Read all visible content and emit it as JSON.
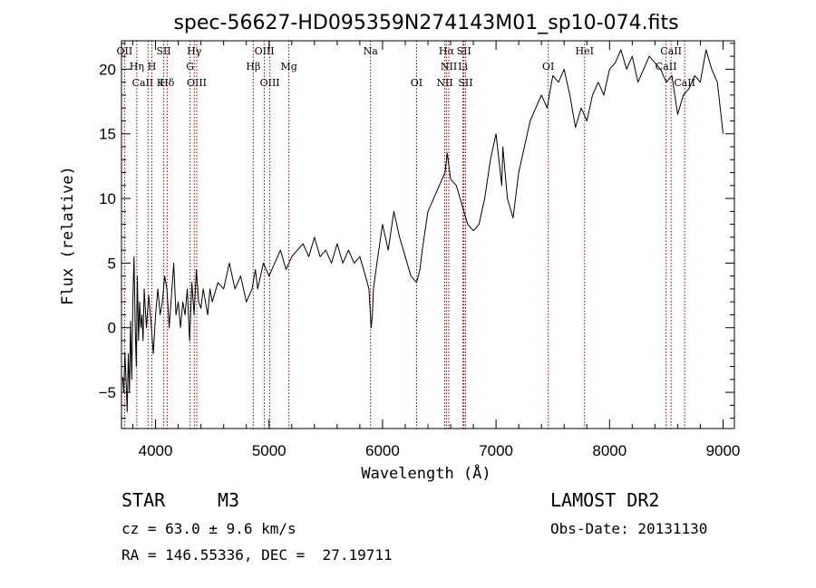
{
  "chart_data": {
    "type": "line",
    "title": "spec-56627-HD095359N274143M01_sp10-074.fits",
    "xlabel": "Wavelength (Å)",
    "ylabel": "Flux (relative)",
    "xlim": [
      3700,
      9100
    ],
    "ylim": [
      -7.8,
      22.2
    ],
    "grid": false,
    "xticks": [
      4000,
      5000,
      6000,
      7000,
      8000,
      9000
    ],
    "yticks": [
      -5,
      0,
      5,
      10,
      15,
      20
    ],
    "series": [
      {
        "x": [
          3710,
          3720,
          3730,
          3740,
          3750,
          3760,
          3770,
          3780,
          3790,
          3800,
          3810,
          3820,
          3830,
          3840,
          3850,
          3860,
          3870,
          3880,
          3890,
          3900,
          3920,
          3940,
          3960,
          3980,
          4000,
          4020,
          4040,
          4060,
          4080,
          4100,
          4120,
          4140,
          4160,
          4180,
          4200,
          4220,
          4240,
          4260,
          4280,
          4300,
          4320,
          4340,
          4360,
          4380,
          4400,
          4420,
          4440,
          4460,
          4480,
          4500,
          4550,
          4600,
          4650,
          4700,
          4750,
          4800,
          4850,
          4880,
          4900,
          4950,
          5000,
          5050,
          5100,
          5150,
          5200,
          5250,
          5300,
          5350,
          5400,
          5450,
          5500,
          5550,
          5600,
          5650,
          5700,
          5750,
          5800,
          5850,
          5880,
          5900,
          5910,
          5920,
          5950,
          6000,
          6050,
          6100,
          6150,
          6200,
          6250,
          6300,
          6330,
          6350,
          6400,
          6450,
          6500,
          6550,
          6570,
          6600,
          6650,
          6700,
          6750,
          6800,
          6850,
          6900,
          6950,
          7000,
          7050,
          7060,
          7100,
          7150,
          7200,
          7250,
          7300,
          7350,
          7400,
          7450,
          7500,
          7550,
          7600,
          7650,
          7700,
          7750,
          7800,
          7850,
          7900,
          7950,
          8000,
          8050,
          8100,
          8150,
          8200,
          8250,
          8300,
          8350,
          8400,
          8450,
          8500,
          8550,
          8600,
          8650,
          8700,
          8750,
          8800,
          8850,
          8900,
          8950,
          9000
        ],
        "values": [
          -3.8,
          -5,
          -2,
          -4,
          -6.5,
          -2,
          -5,
          0.5,
          -4,
          2,
          5.5,
          0.5,
          -3,
          4,
          -1,
          2,
          0,
          1,
          -1,
          3,
          0,
          2.5,
          0.5,
          -2,
          1,
          3,
          1,
          2,
          4,
          3,
          0,
          2.5,
          5,
          1,
          2,
          0,
          2,
          1,
          3,
          -1,
          3.5,
          1,
          4.5,
          2,
          1.5,
          3,
          2,
          1,
          3,
          2,
          3.5,
          3,
          5,
          3,
          4,
          2,
          3,
          4.5,
          3,
          5,
          4,
          5,
          6,
          4.5,
          5.5,
          6,
          6.5,
          5.5,
          7,
          5.5,
          6,
          5,
          6.5,
          5,
          6,
          5,
          5.5,
          4,
          3,
          0,
          1,
          3,
          5,
          8,
          6,
          9,
          7,
          5.5,
          4,
          3.5,
          4.5,
          6,
          9,
          10,
          11,
          12,
          13.5,
          11.5,
          11,
          9.5,
          8,
          7.5,
          8,
          10,
          13,
          15,
          11,
          14,
          10,
          8.5,
          12,
          14,
          16,
          17,
          18,
          17,
          19.5,
          19,
          20,
          18,
          15.5,
          17,
          16,
          18,
          19,
          18,
          20,
          20.5,
          21.5,
          20,
          21,
          19,
          20,
          21,
          20.5,
          20,
          19,
          19.5,
          16.5,
          18,
          18.5,
          19.5,
          19,
          21.5,
          20,
          19,
          15
        ]
      }
    ],
    "line_markers": [
      {
        "label": "OII",
        "wavelength": 3727,
        "row": 0
      },
      {
        "label": "Hη",
        "wavelength": 3835,
        "row": 1
      },
      {
        "label": "CaII K",
        "wavelength": 3934,
        "row": 2
      },
      {
        "label": "H",
        "wavelength": 3968,
        "row": 1
      },
      {
        "label": "SII",
        "wavelength": 4072,
        "row": 0
      },
      {
        "label": "Hδ",
        "wavelength": 4102,
        "row": 2
      },
      {
        "label": "Hγ",
        "wavelength": 4341,
        "row": 0
      },
      {
        "label": "G",
        "wavelength": 4304,
        "row": 1
      },
      {
        "label": "OIII",
        "wavelength": 4363,
        "row": 2
      },
      {
        "label": "OIII",
        "wavelength": 4959,
        "row": 0
      },
      {
        "label": "Hβ",
        "wavelength": 4861,
        "row": 1
      },
      {
        "label": "OIII",
        "wavelength": 5007,
        "row": 2
      },
      {
        "label": "Mg",
        "wavelength": 5175,
        "row": 1
      },
      {
        "label": "Na",
        "wavelength": 5894,
        "row": 0
      },
      {
        "label": "OI",
        "wavelength": 6300,
        "row": 2
      },
      {
        "label": "Hα",
        "wavelength": 6563,
        "row": 0
      },
      {
        "label": "SII",
        "wavelength": 6717,
        "row": 0
      },
      {
        "label": "NII",
        "wavelength": 6584,
        "row": 1
      },
      {
        "label": "Li",
        "wavelength": 6708,
        "row": 1
      },
      {
        "label": "NII",
        "wavelength": 6548,
        "row": 2
      },
      {
        "label": "SII",
        "wavelength": 6731,
        "row": 2
      },
      {
        "label": "OI",
        "wavelength": 7460,
        "row": 1
      },
      {
        "label": "HeI",
        "wavelength": 7780,
        "row": 0
      },
      {
        "label": "CaII",
        "wavelength": 8542,
        "row": 0
      },
      {
        "label": "CaII",
        "wavelength": 8498,
        "row": 1
      },
      {
        "label": "CaII",
        "wavelength": 8662,
        "row": 2
      }
    ],
    "marker_color": "#8b0000"
  },
  "info": {
    "object_type": "STAR",
    "subclass": "M3",
    "survey": "LAMOST DR2",
    "redshift": "cz = 63.0 ± 9.6 km/s",
    "obs_date": "Obs-Date: 20131130",
    "coords": "RA = 146.55336, DEC =  27.19711"
  }
}
